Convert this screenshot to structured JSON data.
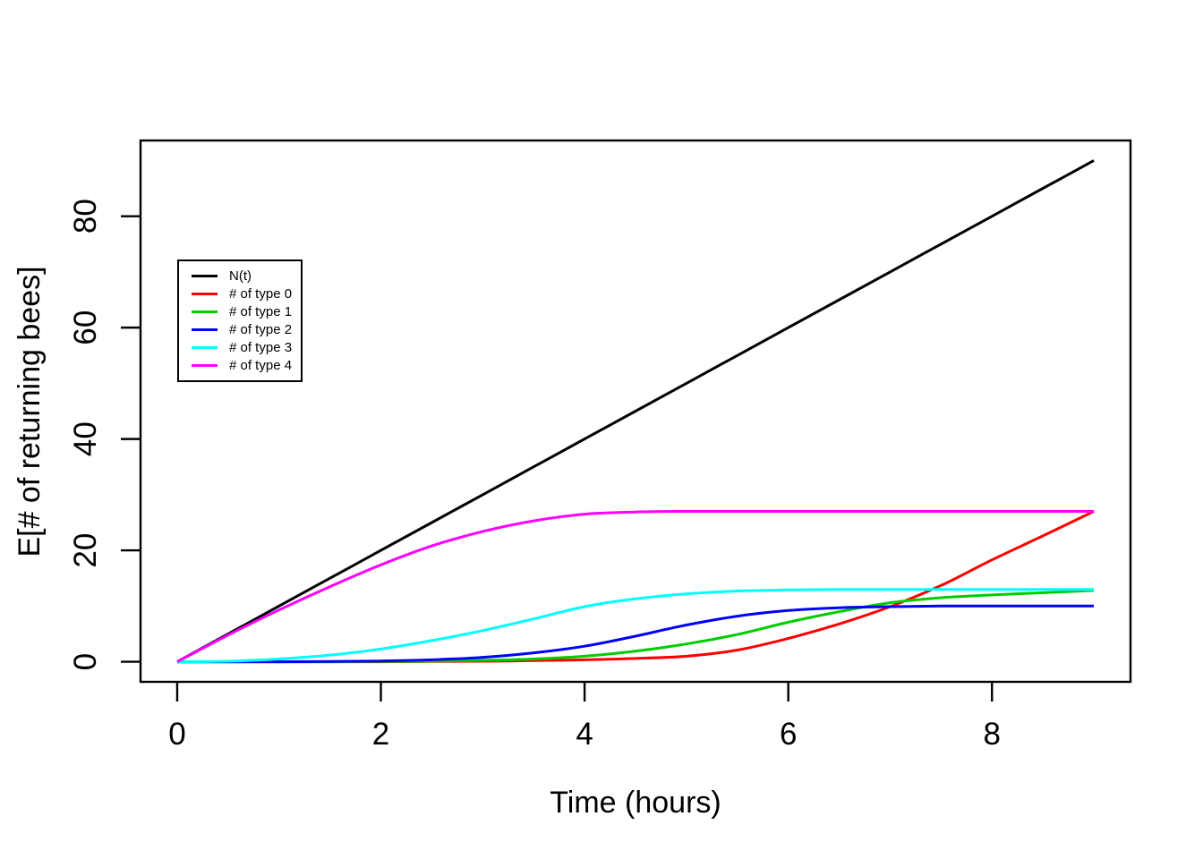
{
  "figure": {
    "background": "#ffffff"
  },
  "chart_data": {
    "type": "line",
    "title": "",
    "xlabel": "Time (hours)",
    "ylabel": "E[# of returning bees]",
    "xlim": [
      0,
      9
    ],
    "ylim": [
      0,
      90
    ],
    "xticks": [
      0,
      2,
      4,
      6,
      8
    ],
    "yticks": [
      0,
      20,
      40,
      60,
      80
    ],
    "grid": false,
    "legend_position": "upper-left-inside",
    "axis_color": "#000000",
    "x": [
      0,
      0.5,
      1,
      1.5,
      2,
      2.5,
      3,
      3.5,
      4,
      4.5,
      5,
      5.5,
      6,
      6.5,
      7,
      7.5,
      8,
      8.5,
      9
    ],
    "series": [
      {
        "name": "N(t)",
        "color": "#000000",
        "values": [
          0,
          5,
          10,
          15,
          20,
          25,
          30,
          35,
          40,
          45,
          50,
          55,
          60,
          65,
          70,
          75,
          80,
          85,
          90
        ]
      },
      {
        "name": "# of type 0",
        "color": "#FF0000",
        "values": [
          0,
          0,
          0,
          0,
          0,
          0.05,
          0.1,
          0.2,
          0.35,
          0.6,
          1,
          2.1,
          4.2,
          6.8,
          9.9,
          13.7,
          18.3,
          22.6,
          27
        ]
      },
      {
        "name": "# of type 1",
        "color": "#00CD00",
        "values": [
          0,
          0,
          0,
          0,
          0.05,
          0.1,
          0.25,
          0.5,
          1,
          1.9,
          3.2,
          4.9,
          7.1,
          9,
          10.6,
          11.5,
          12,
          12.4,
          12.8
        ]
      },
      {
        "name": "# of type 2",
        "color": "#0000FF",
        "values": [
          0,
          0,
          0,
          0.05,
          0.15,
          0.35,
          0.8,
          1.6,
          2.8,
          4.6,
          6.6,
          8.2,
          9.2,
          9.7,
          9.9,
          10,
          10,
          10,
          10
        ]
      },
      {
        "name": "# of type 3",
        "color": "#00FFFF",
        "values": [
          0,
          0.1,
          0.5,
          1.2,
          2.3,
          3.8,
          5.6,
          7.7,
          9.9,
          11.3,
          12.2,
          12.7,
          12.9,
          13,
          13,
          13,
          13,
          13,
          13
        ]
      },
      {
        "name": "# of type 4",
        "color": "#FF00FF",
        "values": [
          0,
          4.8,
          9.3,
          13.5,
          17.4,
          20.8,
          23.4,
          25.3,
          26.5,
          26.9,
          27,
          27,
          27,
          27,
          27,
          27,
          27,
          27,
          27
        ]
      }
    ]
  }
}
